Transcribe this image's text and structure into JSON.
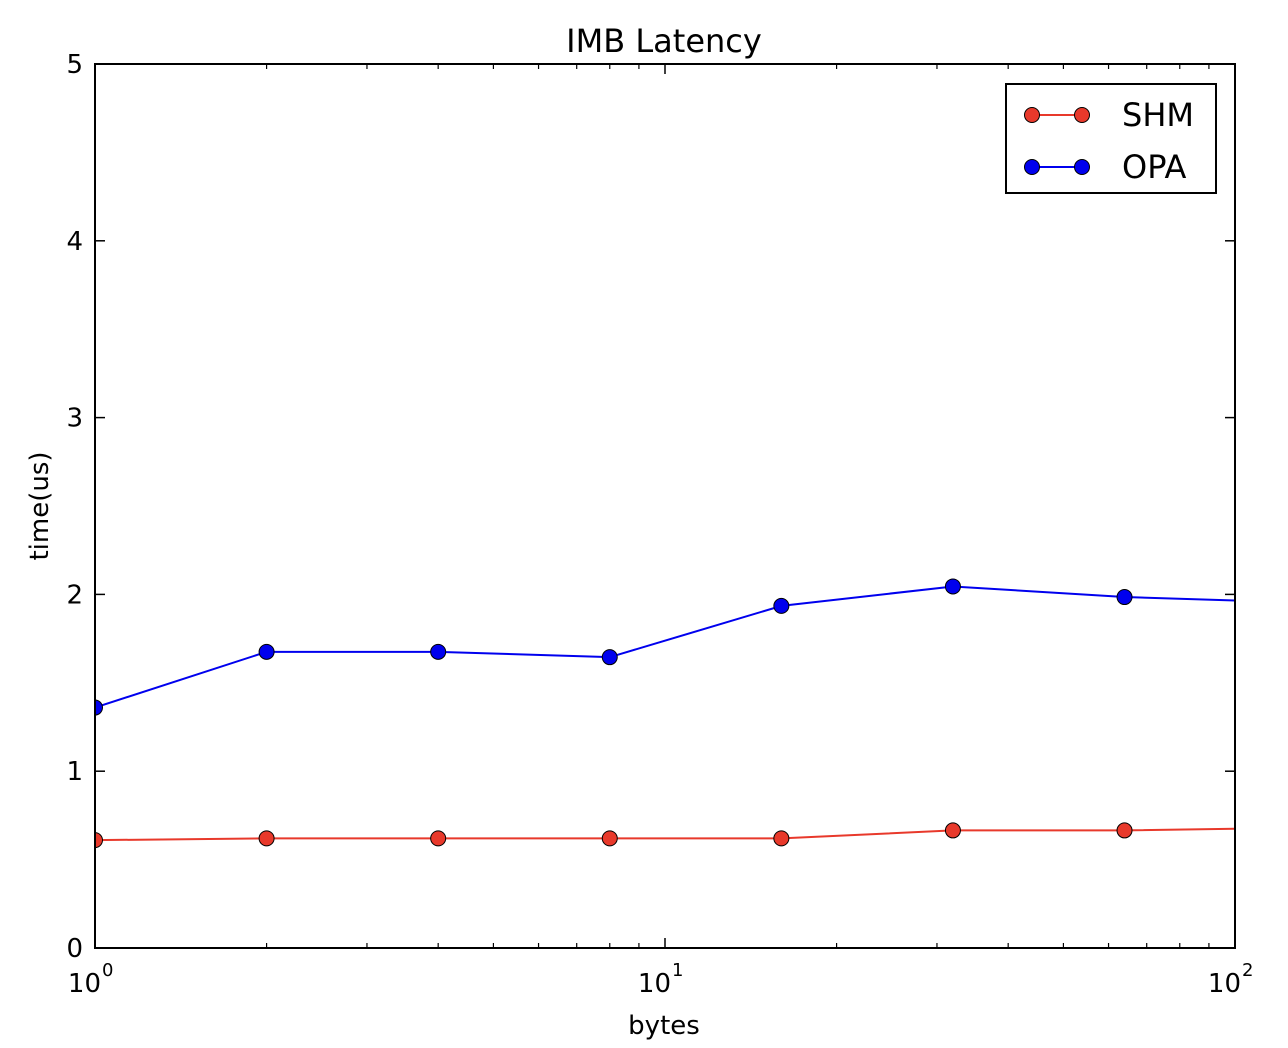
{
  "chart_data": {
    "type": "line",
    "title": "IMB Latency",
    "xlabel": "bytes",
    "ylabel": "time(us)",
    "xscale": "log",
    "xlim": [
      1,
      100
    ],
    "ylim": [
      0,
      5
    ],
    "grid": false,
    "legend_position": "top-right",
    "x": [
      1,
      2,
      4,
      8,
      16,
      32,
      64,
      128
    ],
    "series": [
      {
        "name": "SHM",
        "color": "#e8392b",
        "values": [
          0.61,
          0.62,
          0.62,
          0.62,
          0.62,
          0.665,
          0.665,
          0.68
        ]
      },
      {
        "name": "OPA",
        "color": "#0000ee",
        "values": [
          1.36,
          1.675,
          1.675,
          1.645,
          1.935,
          2.045,
          1.985,
          1.955
        ]
      }
    ],
    "y_ticks": [
      "0",
      "1",
      "2",
      "3",
      "4",
      "5"
    ],
    "y_tick_values": [
      0,
      1,
      2,
      3,
      4,
      5
    ],
    "x_major_ticks": [
      {
        "value": 1,
        "base": "10",
        "exp": "0"
      },
      {
        "value": 10,
        "base": "10",
        "exp": "1"
      },
      {
        "value": 100,
        "base": "10",
        "exp": "2"
      }
    ]
  }
}
